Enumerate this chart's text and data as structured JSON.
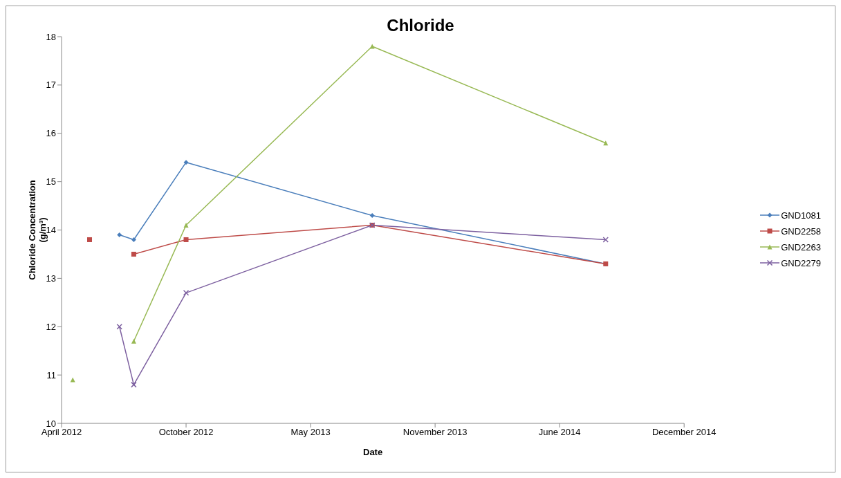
{
  "chart_data": {
    "type": "line",
    "title": "Chloride",
    "xlabel": "Date",
    "ylabel": "Chloride Concentration (g/m³)",
    "x": [
      "2012-04-19",
      "2012-05-16",
      "2012-07-03",
      "2012-07-26",
      "2012-10-18",
      "2013-08-13",
      "2014-08-23"
    ],
    "series": [
      {
        "name": "GND1081",
        "color": "#4a7ebb",
        "marker": "diamond",
        "values": [
          null,
          null,
          13.9,
          13.8,
          15.4,
          14.3,
          13.3
        ]
      },
      {
        "name": "GND2258",
        "color": "#be4b48",
        "marker": "square",
        "values": [
          null,
          13.8,
          null,
          13.5,
          13.8,
          14.1,
          13.3
        ]
      },
      {
        "name": "GND2263",
        "color": "#98b954",
        "marker": "triangle",
        "values": [
          10.9,
          null,
          null,
          11.7,
          14.1,
          17.8,
          15.8
        ]
      },
      {
        "name": "GND2279",
        "color": "#7d60a0",
        "marker": "cross",
        "values": [
          null,
          null,
          12.0,
          10.8,
          12.7,
          14.1,
          13.8
        ]
      }
    ],
    "xlim": [
      "2012-04-01",
      "2014-12-27"
    ],
    "xticks": [
      {
        "value": "2012-04-01",
        "label": "April 2012"
      },
      {
        "value": "2012-10-18",
        "label": "October 2012"
      },
      {
        "value": "2013-05-06",
        "label": "May 2013"
      },
      {
        "value": "2013-11-22",
        "label": "November 2013"
      },
      {
        "value": "2014-06-10",
        "label": "June 2014"
      },
      {
        "value": "2014-12-27",
        "label": "December 2014"
      }
    ],
    "ylim": [
      10,
      18
    ],
    "yticks": [
      10,
      11,
      12,
      13,
      14,
      15,
      16,
      17,
      18
    ],
    "grid": false,
    "legend": "right",
    "line_style": "solid"
  }
}
